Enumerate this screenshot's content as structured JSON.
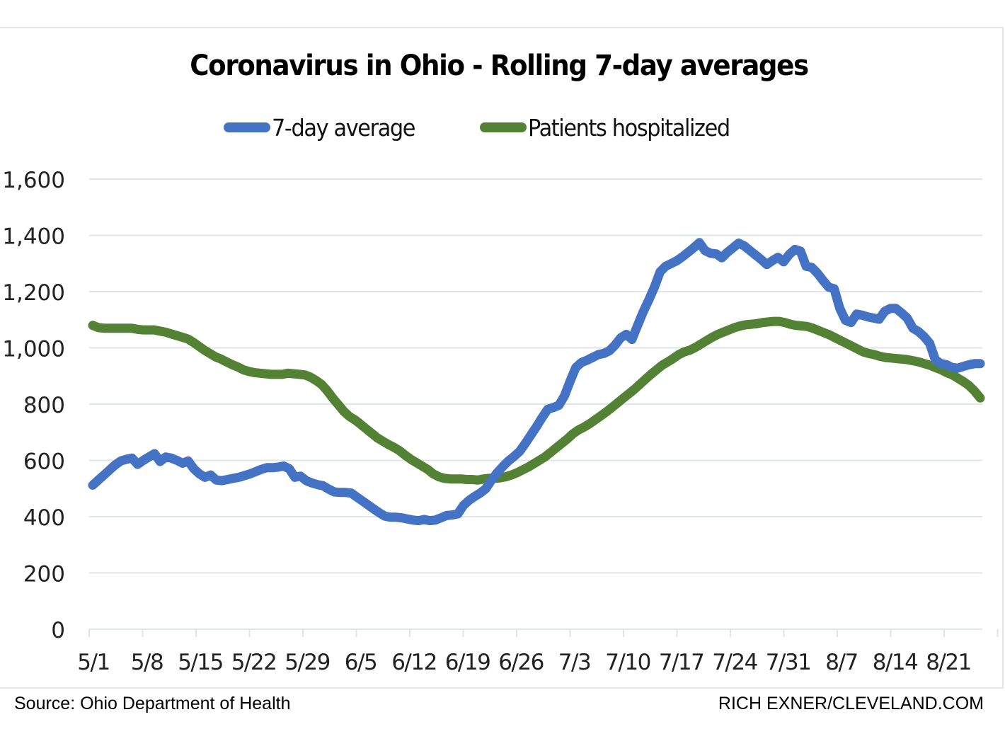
{
  "header": {
    "title": "Coronavirus in Ohio - Rolling 7-day averages"
  },
  "footer": {
    "source": "Source: Ohio Department of Health",
    "credit": "RICH EXNER/CLEVELAND.COM"
  },
  "colors": {
    "seven_day": "#4472c4",
    "hospitalized": "#548235",
    "grid": "#dfe3ea",
    "text": "#222222"
  },
  "chart_data": {
    "type": "line",
    "title": "Coronavirus in Ohio - Rolling 7-day averages",
    "xlabel": "",
    "ylabel": "",
    "ylim": [
      0,
      1600
    ],
    "yticks": [
      0,
      200,
      400,
      600,
      800,
      1000,
      1200,
      1400,
      1600
    ],
    "ytick_labels": [
      "0",
      "200",
      "400",
      "600",
      "800",
      "1,000",
      "1,200",
      "1,400",
      "1,600"
    ],
    "x_start": "5/1",
    "x_end": "8/26",
    "xtick_labels": [
      "5/1",
      "5/8",
      "5/15",
      "5/22",
      "5/29",
      "6/5",
      "6/12",
      "6/19",
      "6/26",
      "7/3",
      "7/10",
      "7/17",
      "7/24",
      "7/31",
      "8/7",
      "8/14",
      "8/21"
    ],
    "xtick_interval_days": 7,
    "grid": true,
    "legend_position": "top-center",
    "series": [
      {
        "name": "7-day average",
        "color": "#4472c4",
        "values": [
          512,
          530,
          548,
          566,
          584,
          598,
          604,
          608,
          586,
          600,
          612,
          624,
          596,
          612,
          608,
          600,
          590,
          598,
          570,
          552,
          540,
          548,
          530,
          528,
          532,
          536,
          540,
          546,
          552,
          560,
          568,
          574,
          574,
          576,
          580,
          570,
          540,
          544,
          528,
          520,
          514,
          510,
          498,
          488,
          486,
          486,
          484,
          470,
          456,
          442,
          428,
          414,
          402,
          398,
          398,
          396,
          392,
          388,
          386,
          390,
          386,
          388,
          396,
          404,
          406,
          410,
          440,
          458,
          472,
          484,
          500,
          530,
          556,
          578,
          598,
          614,
          632,
          660,
          690,
          720,
          752,
          782,
          788,
          796,
          830,
          882,
          930,
          948,
          956,
          966,
          976,
          980,
          990,
          1010,
          1036,
          1048,
          1030,
          1080,
          1128,
          1170,
          1216,
          1270,
          1290,
          1300,
          1310,
          1324,
          1340,
          1356,
          1374,
          1346,
          1336,
          1334,
          1320,
          1340,
          1356,
          1372,
          1362,
          1346,
          1330,
          1314,
          1296,
          1310,
          1322,
          1306,
          1332,
          1350,
          1344,
          1290,
          1286,
          1266,
          1240,
          1216,
          1210,
          1140,
          1098,
          1090,
          1120,
          1116,
          1110,
          1106,
          1102,
          1130,
          1140,
          1140,
          1124,
          1106,
          1070,
          1058,
          1040,
          1016,
          958,
          944,
          940,
          930,
          928,
          934,
          940,
          944,
          944
        ]
      },
      {
        "name": "Patients hospitalized",
        "color": "#548235",
        "values": [
          1080,
          1072,
          1070,
          1070,
          1070,
          1070,
          1070,
          1070,
          1066,
          1064,
          1064,
          1064,
          1060,
          1056,
          1050,
          1044,
          1038,
          1032,
          1020,
          1006,
          992,
          980,
          968,
          960,
          950,
          940,
          932,
          922,
          916,
          912,
          910,
          908,
          906,
          906,
          906,
          910,
          908,
          906,
          904,
          896,
          884,
          870,
          848,
          822,
          798,
          774,
          756,
          744,
          728,
          712,
          696,
          680,
          668,
          656,
          646,
          634,
          618,
          604,
          592,
          580,
          568,
          552,
          542,
          536,
          534,
          534,
          534,
          532,
          532,
          530,
          534,
          536,
          536,
          538,
          542,
          548,
          556,
          566,
          576,
          588,
          600,
          612,
          628,
          644,
          660,
          676,
          694,
          708,
          718,
          730,
          744,
          758,
          772,
          788,
          804,
          820,
          836,
          852,
          870,
          888,
          906,
          922,
          938,
          950,
          962,
          976,
          986,
          992,
          1002,
          1014,
          1026,
          1038,
          1048,
          1056,
          1064,
          1072,
          1078,
          1082,
          1084,
          1086,
          1090,
          1092,
          1094,
          1094,
          1090,
          1084,
          1080,
          1078,
          1076,
          1070,
          1062,
          1054,
          1046,
          1036,
          1026,
          1016,
          1006,
          996,
          986,
          980,
          976,
          970,
          966,
          964,
          962,
          960,
          958,
          954,
          950,
          944,
          938,
          930,
          922,
          912,
          904,
          892,
          880,
          866,
          846,
          822
        ]
      }
    ]
  }
}
